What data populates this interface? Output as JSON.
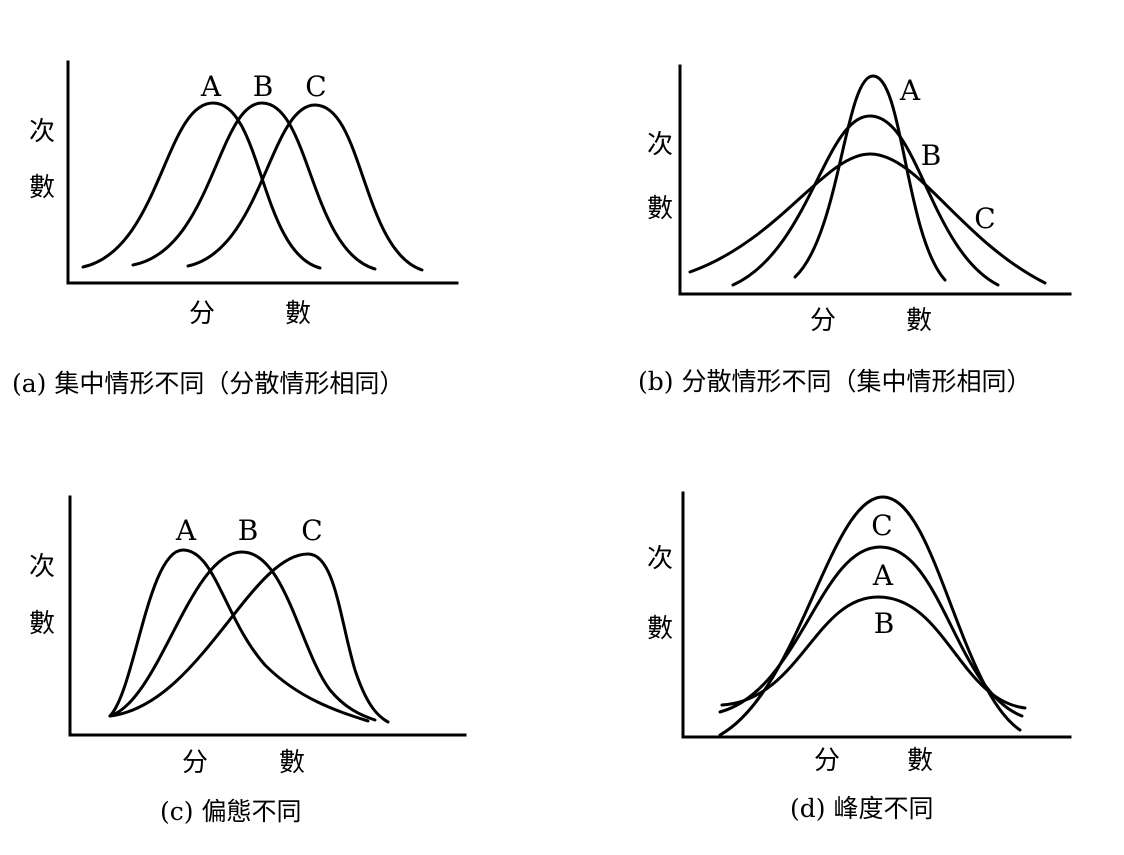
{
  "panels": [
    {
      "caption": "(a) 集中情形不同（分散情形相同）",
      "ylabel": [
        "次",
        "數"
      ],
      "xlabel": [
        "分",
        "數"
      ],
      "curves": [
        {
          "label": "A"
        },
        {
          "label": "B"
        },
        {
          "label": "C"
        }
      ]
    },
    {
      "caption": "(b) 分散情形不同（集中情形相同）",
      "ylabel": [
        "次",
        "數"
      ],
      "xlabel": [
        "分",
        "數"
      ],
      "curves": [
        {
          "label": "A"
        },
        {
          "label": "B"
        },
        {
          "label": "C"
        }
      ]
    },
    {
      "caption": "(c) 偏態不同",
      "ylabel": [
        "次",
        "數"
      ],
      "xlabel": [
        "分",
        "數"
      ],
      "curves": [
        {
          "label": "A"
        },
        {
          "label": "B"
        },
        {
          "label": "C"
        }
      ]
    },
    {
      "caption": "(d) 峰度不同",
      "ylabel": [
        "次",
        "數"
      ],
      "xlabel": [
        "分",
        "數"
      ],
      "curves": [
        {
          "label": "C"
        },
        {
          "label": "A"
        },
        {
          "label": "B"
        }
      ]
    }
  ]
}
